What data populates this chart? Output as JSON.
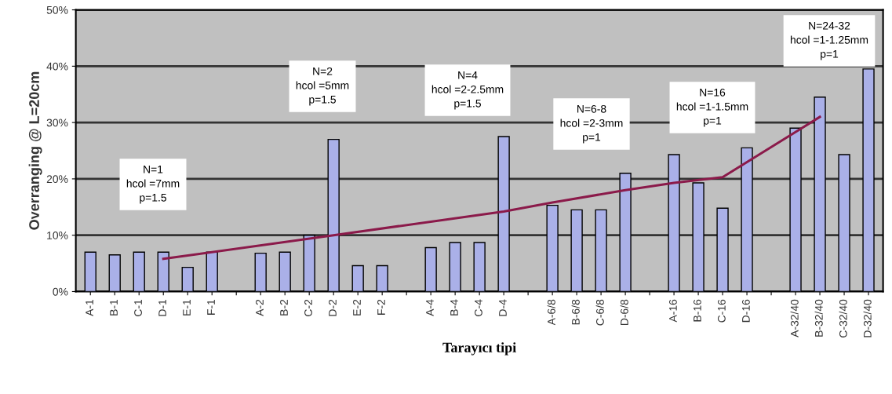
{
  "chart_data": {
    "type": "bar",
    "xlabel": "Tarayıcı tipi",
    "ylabel": "Overranging @ L=20cm",
    "categories": [
      "A-1",
      "B-1",
      "C-1",
      "D-1",
      "E-1",
      "F-1",
      null,
      "A-2",
      "B-2",
      "C-2",
      "D-2",
      "E-2",
      "F-2",
      null,
      "A-4",
      "B-4",
      "C-4",
      "D-4",
      null,
      "A-6/8",
      "B-6/8",
      "C-6/8",
      "D-6/8",
      null,
      "A-16",
      "B-16",
      "C-16",
      "D-16",
      null,
      "A-32/40",
      "B-32/40",
      "C-32/40",
      "D-32/40"
    ],
    "series": [
      {
        "color": "#aab0e8",
        "values": [
          7,
          6.5,
          7,
          7,
          4.3,
          7,
          null,
          6.8,
          7,
          10,
          27,
          4.6,
          4.6,
          null,
          7.8,
          8.7,
          8.7,
          27.5,
          null,
          15.3,
          14.5,
          14.5,
          21,
          null,
          24.3,
          19.3,
          14.8,
          25.5,
          null,
          29,
          34.5,
          24.3,
          39.5
        ]
      },
      {
        "type": "line",
        "color": "#8b1a4a",
        "values": [
          null,
          null,
          null,
          5.8,
          null,
          null,
          null,
          null,
          null,
          null,
          10,
          null,
          null,
          null,
          null,
          null,
          null,
          14.2,
          null,
          15.8,
          null,
          null,
          18,
          null,
          19.3,
          null,
          20.3,
          null,
          null,
          null,
          31,
          null,
          null
        ]
      }
    ],
    "ylim": [
      0,
      50
    ],
    "yticks": [
      {
        "value": 0,
        "label": "0%"
      },
      {
        "value": 10,
        "label": "10%"
      },
      {
        "value": 20,
        "label": "20%"
      },
      {
        "value": 30,
        "label": "30%"
      },
      {
        "value": 40,
        "label": "40%"
      },
      {
        "value": 50,
        "label": "50%"
      }
    ],
    "grid": "y",
    "annotations": [
      "N=1\nhcol =7mm\np=1.5",
      "N=2\nhcol =5mm\np=1.5",
      "N=4\nhcol =2-2.5mm\np=1.5",
      "N=6-8\nhcol =2-3mm\np=1",
      "N=16\nhcol =1-1.5mm\np=1",
      "N=24-32\nhcol =1-1.25mm\np=1"
    ]
  }
}
